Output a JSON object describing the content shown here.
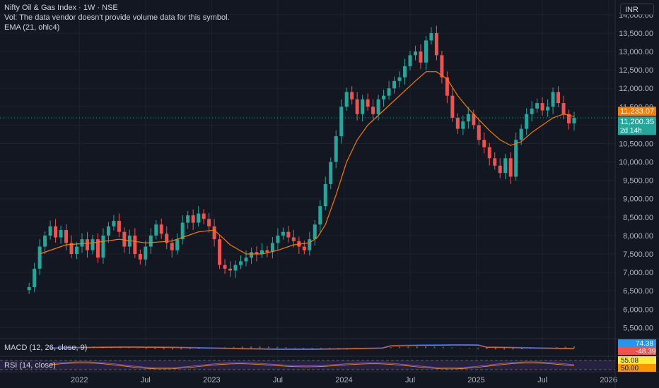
{
  "header": {
    "title": "Nifty Oil & Gas Index · 1W · NSE",
    "vol_note": "Vol: The data vendor doesn't provide volume data for this symbol.",
    "ema_label": "EMA (21, ohlc4)"
  },
  "currency": "INR",
  "colors": {
    "background": "#131722",
    "up": "#26a69a",
    "down": "#ef5350",
    "ema": "#f57c00",
    "grid": "#1e222d",
    "axis_text": "#b2b5be",
    "macd_line": "#2962ff",
    "signal_line": "#ff6d00",
    "rsi_line": "#7e57c2",
    "rsi_band": "#2a2446"
  },
  "panes": {
    "macd_label": "MACD (12, 26, close, 9)",
    "rsi_label": "RSI (14, close)"
  },
  "badges": {
    "ema_value": "11,233.07",
    "last_price": "11,200.35",
    "countdown": "2d 14h",
    "macd_value": "74.38",
    "macd_hist": "-48.39",
    "rsi_value": "55.08",
    "rsi_mid": "50.00"
  },
  "chart_data": {
    "type": "candlestick",
    "y_ticks": [
      "14,000.00",
      "13,500.00",
      "13,000.00",
      "12,500.00",
      "12,000.00",
      "11,500.00",
      "11,000.00",
      "10,500.00",
      "10,000.00",
      "9,500.00",
      "9,000.00",
      "8,500.00",
      "8,000.00",
      "7,500.00",
      "7,000.00",
      "6,500.00",
      "6,000.00",
      "5,500.00"
    ],
    "ylim": [
      5200,
      14400
    ],
    "x_ticks": [
      {
        "label": "2022",
        "t": 2022.0
      },
      {
        "label": "Jul",
        "t": 2022.5
      },
      {
        "label": "2023",
        "t": 2023.0
      },
      {
        "label": "Jul",
        "t": 2023.5
      },
      {
        "label": "2024",
        "t": 2024.0
      },
      {
        "label": "Jul",
        "t": 2024.5
      },
      {
        "label": "2025",
        "t": 2025.0
      },
      {
        "label": "Jul",
        "t": 2025.5
      },
      {
        "label": "2026",
        "t": 2026.0
      }
    ],
    "xlim": [
      2021.4,
      2026.05
    ],
    "last_price": 11200.35,
    "ema_last": 11233.07,
    "close_series": [
      [
        2021.62,
        6600
      ],
      [
        2021.66,
        7100
      ],
      [
        2021.7,
        7700
      ],
      [
        2021.74,
        8000
      ],
      [
        2021.78,
        8250
      ],
      [
        2021.82,
        7950
      ],
      [
        2021.86,
        8150
      ],
      [
        2021.9,
        7800
      ],
      [
        2021.94,
        7500
      ],
      [
        2021.98,
        7700
      ],
      [
        2022.02,
        7900
      ],
      [
        2022.06,
        7600
      ],
      [
        2022.1,
        7900
      ],
      [
        2022.14,
        7400
      ],
      [
        2022.18,
        8000
      ],
      [
        2022.22,
        8250
      ],
      [
        2022.26,
        8400
      ],
      [
        2022.3,
        8100
      ],
      [
        2022.34,
        7700
      ],
      [
        2022.38,
        8000
      ],
      [
        2022.42,
        7500
      ],
      [
        2022.46,
        7350
      ],
      [
        2022.5,
        7700
      ],
      [
        2022.54,
        8000
      ],
      [
        2022.58,
        8300
      ],
      [
        2022.62,
        8050
      ],
      [
        2022.66,
        7800
      ],
      [
        2022.7,
        7600
      ],
      [
        2022.74,
        7900
      ],
      [
        2022.78,
        8350
      ],
      [
        2022.82,
        8550
      ],
      [
        2022.86,
        8350
      ],
      [
        2022.9,
        8600
      ],
      [
        2022.94,
        8450
      ],
      [
        2022.98,
        8250
      ],
      [
        2023.02,
        7900
      ],
      [
        2023.06,
        7200
      ],
      [
        2023.1,
        7100
      ],
      [
        2023.14,
        7050
      ],
      [
        2023.18,
        7200
      ],
      [
        2023.22,
        7300
      ],
      [
        2023.26,
        7400
      ],
      [
        2023.3,
        7550
      ],
      [
        2023.34,
        7500
      ],
      [
        2023.38,
        7600
      ],
      [
        2023.42,
        7550
      ],
      [
        2023.46,
        7800
      ],
      [
        2023.5,
        8000
      ],
      [
        2023.54,
        8100
      ],
      [
        2023.58,
        7950
      ],
      [
        2023.62,
        7850
      ],
      [
        2023.66,
        7700
      ],
      [
        2023.7,
        7600
      ],
      [
        2023.74,
        7900
      ],
      [
        2023.78,
        8300
      ],
      [
        2023.82,
        8800
      ],
      [
        2023.86,
        9400
      ],
      [
        2023.9,
        10000
      ],
      [
        2023.94,
        10700
      ],
      [
        2023.98,
        11500
      ],
      [
        2024.02,
        11900
      ],
      [
        2024.06,
        11700
      ],
      [
        2024.1,
        11300
      ],
      [
        2024.14,
        11700
      ],
      [
        2024.18,
        11500
      ],
      [
        2024.22,
        11300
      ],
      [
        2024.26,
        11700
      ],
      [
        2024.3,
        11800
      ],
      [
        2024.34,
        12000
      ],
      [
        2024.38,
        12200
      ],
      [
        2024.42,
        12300
      ],
      [
        2024.46,
        12600
      ],
      [
        2024.5,
        12900
      ],
      [
        2024.54,
        13000
      ],
      [
        2024.58,
        12700
      ],
      [
        2024.62,
        13300
      ],
      [
        2024.66,
        13500
      ],
      [
        2024.7,
        12900
      ],
      [
        2024.74,
        12300
      ],
      [
        2024.78,
        11800
      ],
      [
        2024.82,
        11200
      ],
      [
        2024.86,
        10900
      ],
      [
        2024.9,
        11100
      ],
      [
        2024.94,
        11300
      ],
      [
        2024.98,
        11000
      ],
      [
        2025.02,
        10600
      ],
      [
        2025.06,
        10400
      ],
      [
        2025.1,
        10100
      ],
      [
        2025.14,
        9900
      ],
      [
        2025.18,
        9700
      ],
      [
        2025.22,
        10100
      ],
      [
        2025.26,
        9600
      ],
      [
        2025.3,
        10600
      ],
      [
        2025.34,
        10900
      ],
      [
        2025.38,
        11300
      ],
      [
        2025.42,
        11450
      ],
      [
        2025.46,
        11600
      ],
      [
        2025.5,
        11400
      ],
      [
        2025.54,
        11500
      ],
      [
        2025.58,
        11900
      ],
      [
        2025.62,
        11600
      ],
      [
        2025.66,
        11300
      ],
      [
        2025.7,
        11050
      ],
      [
        2025.74,
        11200
      ]
    ],
    "ema_series": [
      [
        2021.7,
        7500
      ],
      [
        2021.9,
        7750
      ],
      [
        2022.1,
        7800
      ],
      [
        2022.3,
        7900
      ],
      [
        2022.5,
        7800
      ],
      [
        2022.7,
        7850
      ],
      [
        2022.9,
        8100
      ],
      [
        2023.02,
        8150
      ],
      [
        2023.14,
        7750
      ],
      [
        2023.26,
        7500
      ],
      [
        2023.38,
        7500
      ],
      [
        2023.5,
        7600
      ],
      [
        2023.62,
        7750
      ],
      [
        2023.74,
        7800
      ],
      [
        2023.8,
        7950
      ],
      [
        2023.86,
        8300
      ],
      [
        2023.94,
        9100
      ],
      [
        2024.02,
        10000
      ],
      [
        2024.1,
        10600
      ],
      [
        2024.18,
        11000
      ],
      [
        2024.3,
        11400
      ],
      [
        2024.42,
        11800
      ],
      [
        2024.54,
        12200
      ],
      [
        2024.62,
        12450
      ],
      [
        2024.7,
        12450
      ],
      [
        2024.78,
        12250
      ],
      [
        2024.86,
        11800
      ],
      [
        2024.94,
        11450
      ],
      [
        2025.02,
        11150
      ],
      [
        2025.1,
        10850
      ],
      [
        2025.18,
        10600
      ],
      [
        2025.26,
        10450
      ],
      [
        2025.34,
        10550
      ],
      [
        2025.42,
        10800
      ],
      [
        2025.5,
        11000
      ],
      [
        2025.58,
        11200
      ],
      [
        2025.66,
        11300
      ],
      [
        2025.74,
        11233
      ]
    ]
  }
}
